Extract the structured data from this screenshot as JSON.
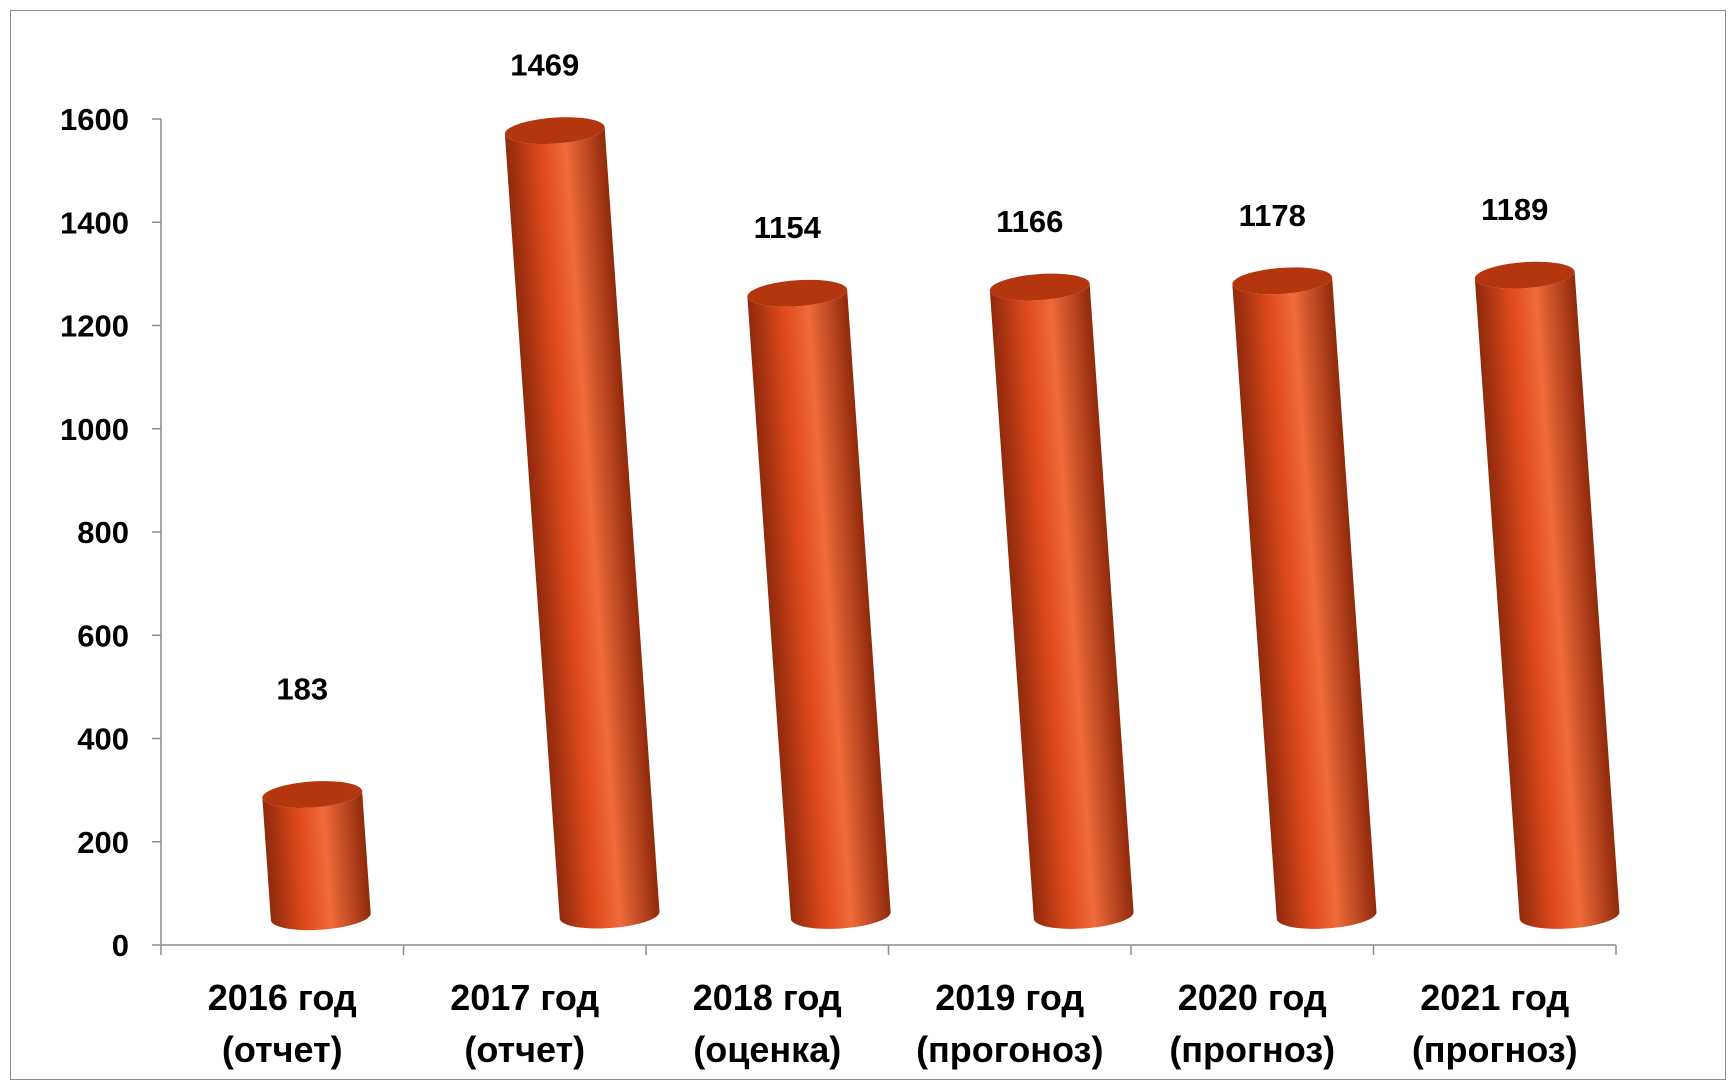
{
  "chart_data": {
    "type": "bar",
    "style": "3d-cylinder",
    "categories": [
      [
        "2016 год",
        "(отчет)"
      ],
      [
        "2017 год",
        "(отчет)"
      ],
      [
        "2018 год",
        "(оценка)"
      ],
      [
        "2019 год",
        "(прогоноз)"
      ],
      [
        "2020 год",
        "(прогноз)"
      ],
      [
        "2021 год",
        "(прогноз)"
      ]
    ],
    "values": [
      183,
      1469,
      1154,
      1166,
      1178,
      1189
    ],
    "y_ticks": [
      0,
      200,
      400,
      600,
      800,
      1000,
      1200,
      1400,
      1600
    ],
    "ylim": [
      0,
      1600
    ],
    "grid": false,
    "legend": "none",
    "colors": {
      "bar": "#e04a1c",
      "bar_dark": "#8f2a0c",
      "bar_light": "#f06a3a",
      "bar_top": "#b3360f",
      "axis": "#8c8c8c"
    }
  }
}
